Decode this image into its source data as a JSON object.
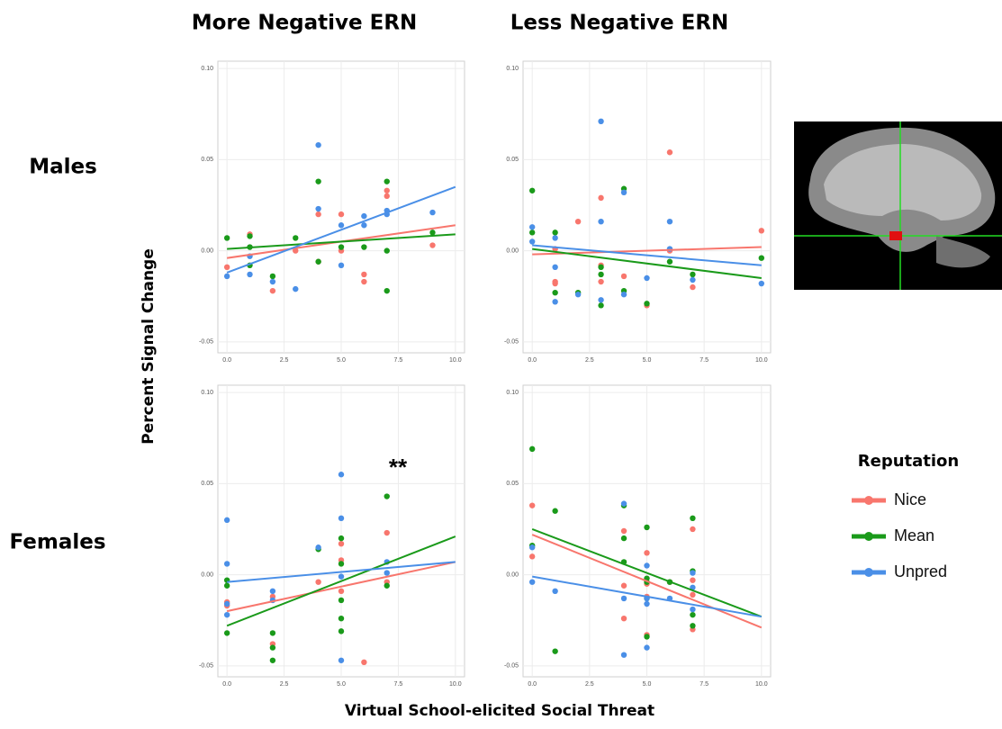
{
  "column_titles": [
    "More Negative ERN",
    "Less Negative ERN"
  ],
  "row_labels": [
    "Males",
    "Females"
  ],
  "y_label": "Percent Signal Change",
  "x_label": "Virtual School-elicited Social Threat",
  "legend_title": "Reputation",
  "chart_data": [
    {
      "type": "scatter",
      "xlim": [
        -0.4,
        10.4
      ],
      "ylim": [
        -0.056,
        0.104
      ],
      "xticks": [
        {
          "value": 0,
          "label": "0.0"
        },
        {
          "value": 2.5,
          "label": "2.5"
        },
        {
          "value": 5,
          "label": "5.0"
        },
        {
          "value": 7.5,
          "label": "7.5"
        },
        {
          "value": 10,
          "label": "10.0"
        }
      ],
      "yticks": [
        {
          "value": -0.05,
          "label": "-0.05"
        },
        {
          "value": 0,
          "label": "0.00"
        },
        {
          "value": 0.05,
          "label": "0.05"
        },
        {
          "value": 0.1,
          "label": "0.10"
        }
      ],
      "grid": true,
      "trend_x": [
        0,
        10
      ],
      "series": [
        {
          "name": "Nice",
          "color": "#f8766d",
          "x": [
            0,
            1,
            2,
            3,
            4,
            4,
            5,
            5,
            6,
            6,
            7,
            7,
            9
          ],
          "values": [
            -0.009,
            0.009,
            -0.022,
            0.0,
            0.02,
            -0.006,
            0.02,
            0.0,
            -0.013,
            -0.017,
            0.033,
            0.03,
            0.003
          ],
          "trend": [
            -0.004,
            0.014
          ]
        },
        {
          "name": "Mean",
          "color": "#1a9a1a",
          "x": [
            0,
            1,
            1,
            1,
            2,
            3,
            4,
            4,
            5,
            6,
            7,
            7,
            7,
            9
          ],
          "values": [
            0.007,
            0.008,
            0.002,
            -0.008,
            -0.014,
            0.007,
            0.038,
            -0.006,
            0.002,
            0.002,
            0.038,
            0.0,
            -0.022,
            0.01
          ],
          "trend": [
            0.001,
            0.009
          ]
        },
        {
          "name": "Unpred",
          "color": "#4a8fe7",
          "x": [
            0,
            1,
            1,
            2,
            3,
            4,
            4,
            5,
            5,
            6,
            6,
            7,
            7,
            9
          ],
          "values": [
            -0.014,
            -0.003,
            -0.013,
            -0.017,
            -0.021,
            0.058,
            0.023,
            0.014,
            -0.008,
            0.019,
            0.014,
            0.022,
            0.02,
            0.021
          ],
          "trend": [
            -0.012,
            0.035
          ]
        }
      ]
    },
    {
      "type": "scatter",
      "xlim": [
        -0.4,
        10.4
      ],
      "ylim": [
        -0.056,
        0.104
      ],
      "xticks": [
        {
          "value": 0,
          "label": "0.0"
        },
        {
          "value": 2.5,
          "label": "2.5"
        },
        {
          "value": 5,
          "label": "5.0"
        },
        {
          "value": 7.5,
          "label": "7.5"
        },
        {
          "value": 10,
          "label": "10.0"
        }
      ],
      "yticks": [
        {
          "value": -0.05,
          "label": "-0.05"
        },
        {
          "value": 0,
          "label": "0.00"
        },
        {
          "value": 0.05,
          "label": "0.05"
        },
        {
          "value": 0.1,
          "label": "0.10"
        }
      ],
      "grid": true,
      "trend_x": [
        0,
        10
      ],
      "series": [
        {
          "name": "Nice",
          "color": "#f8766d",
          "x": [
            1,
            1,
            1,
            2,
            3,
            3,
            3,
            4,
            5,
            6,
            6,
            7,
            10
          ],
          "values": [
            0.001,
            -0.017,
            -0.018,
            0.016,
            0.029,
            -0.017,
            -0.008,
            -0.014,
            -0.03,
            0.054,
            0.0,
            -0.02,
            0.011
          ],
          "trend": [
            -0.002,
            0.002
          ]
        },
        {
          "name": "Mean",
          "color": "#1a9a1a",
          "x": [
            0,
            0,
            1,
            1,
            2,
            3,
            3,
            3,
            4,
            4,
            5,
            6,
            7,
            10
          ],
          "values": [
            0.033,
            0.01,
            0.01,
            -0.023,
            -0.023,
            -0.009,
            -0.013,
            -0.03,
            0.034,
            -0.022,
            -0.029,
            -0.006,
            -0.013,
            -0.004
          ],
          "trend": [
            0.001,
            -0.015
          ]
        },
        {
          "name": "Unpred",
          "color": "#4a8fe7",
          "x": [
            0,
            0,
            1,
            1,
            1,
            2,
            3,
            3,
            3,
            4,
            4,
            5,
            6,
            6,
            7,
            10
          ],
          "values": [
            0.013,
            0.005,
            0.007,
            -0.009,
            -0.028,
            -0.024,
            0.071,
            0.016,
            -0.027,
            0.032,
            -0.024,
            -0.015,
            0.016,
            0.001,
            -0.016,
            -0.018
          ],
          "trend": [
            0.003,
            -0.008
          ]
        }
      ]
    },
    {
      "type": "scatter",
      "xlim": [
        -0.4,
        10.4
      ],
      "ylim": [
        -0.056,
        0.104
      ],
      "xticks": [
        {
          "value": 0,
          "label": "0.0"
        },
        {
          "value": 2.5,
          "label": "2.5"
        },
        {
          "value": 5,
          "label": "5.0"
        },
        {
          "value": 7.5,
          "label": "7.5"
        },
        {
          "value": 10,
          "label": "10.0"
        }
      ],
      "yticks": [
        {
          "value": -0.05,
          "label": "-0.05"
        },
        {
          "value": 0,
          "label": "0.00"
        },
        {
          "value": 0.05,
          "label": "0.05"
        },
        {
          "value": 0.1,
          "label": "0.10"
        }
      ],
      "grid": true,
      "trend_x": [
        0,
        10
      ],
      "annotation": "**",
      "series": [
        {
          "name": "Nice",
          "color": "#f8766d",
          "x": [
            0,
            0,
            2,
            2,
            4,
            5,
            5,
            5,
            6,
            7,
            7
          ],
          "values": [
            -0.015,
            -0.017,
            -0.038,
            -0.012,
            -0.004,
            0.017,
            0.008,
            -0.009,
            -0.048,
            0.023,
            -0.004
          ],
          "trend": [
            -0.02,
            0.007
          ]
        },
        {
          "name": "Mean",
          "color": "#1a9a1a",
          "x": [
            0,
            0,
            0,
            2,
            2,
            2,
            4,
            5,
            5,
            5,
            5,
            5,
            7,
            7
          ],
          "values": [
            -0.032,
            -0.006,
            -0.003,
            -0.032,
            -0.04,
            -0.047,
            0.014,
            0.02,
            0.006,
            -0.014,
            -0.024,
            -0.031,
            0.043,
            -0.006
          ],
          "trend": [
            -0.028,
            0.021
          ]
        },
        {
          "name": "Unpred",
          "color": "#4a8fe7",
          "x": [
            0,
            0,
            0,
            0,
            2,
            2,
            4,
            5,
            5,
            5,
            5,
            7,
            7
          ],
          "values": [
            0.03,
            0.006,
            -0.016,
            -0.022,
            -0.009,
            -0.014,
            0.015,
            0.055,
            0.031,
            -0.001,
            -0.047,
            0.007,
            0.001
          ],
          "trend": [
            -0.004,
            0.007
          ]
        }
      ]
    },
    {
      "type": "scatter",
      "xlim": [
        -0.4,
        10.4
      ],
      "ylim": [
        -0.056,
        0.104
      ],
      "xticks": [
        {
          "value": 0,
          "label": "0.0"
        },
        {
          "value": 2.5,
          "label": "2.5"
        },
        {
          "value": 5,
          "label": "5.0"
        },
        {
          "value": 7.5,
          "label": "7.5"
        },
        {
          "value": 10,
          "label": "10.0"
        }
      ],
      "yticks": [
        {
          "value": -0.05,
          "label": "-0.05"
        },
        {
          "value": 0,
          "label": "0.00"
        },
        {
          "value": 0.05,
          "label": "0.05"
        },
        {
          "value": 0.1,
          "label": "0.10"
        }
      ],
      "grid": true,
      "trend_x": [
        0,
        10
      ],
      "series": [
        {
          "name": "Nice",
          "color": "#f8766d",
          "x": [
            0,
            0,
            4,
            4,
            4,
            5,
            5,
            5,
            5,
            6,
            7,
            7,
            7,
            7
          ],
          "values": [
            0.038,
            0.01,
            0.024,
            -0.024,
            -0.006,
            0.012,
            -0.005,
            -0.012,
            -0.033,
            -0.004,
            0.025,
            -0.003,
            -0.011,
            -0.03
          ],
          "trend": [
            0.022,
            -0.029
          ]
        },
        {
          "name": "Mean",
          "color": "#1a9a1a",
          "x": [
            0,
            0,
            1,
            1,
            4,
            4,
            4,
            5,
            5,
            5,
            5,
            5,
            6,
            7,
            7,
            7,
            7
          ],
          "values": [
            0.069,
            0.016,
            0.035,
            -0.042,
            0.038,
            0.02,
            0.007,
            0.026,
            -0.002,
            -0.004,
            -0.013,
            -0.034,
            -0.004,
            0.031,
            0.002,
            -0.022,
            -0.028
          ],
          "trend": [
            0.025,
            -0.023
          ]
        },
        {
          "name": "Unpred",
          "color": "#4a8fe7",
          "x": [
            0,
            0,
            1,
            4,
            4,
            4,
            5,
            5,
            5,
            5,
            6,
            7,
            7,
            7
          ],
          "values": [
            0.015,
            -0.004,
            -0.009,
            0.039,
            -0.013,
            -0.044,
            0.005,
            -0.013,
            -0.016,
            -0.04,
            -0.013,
            0.001,
            -0.007,
            -0.019
          ],
          "trend": [
            -0.001,
            -0.023
          ]
        }
      ]
    }
  ]
}
